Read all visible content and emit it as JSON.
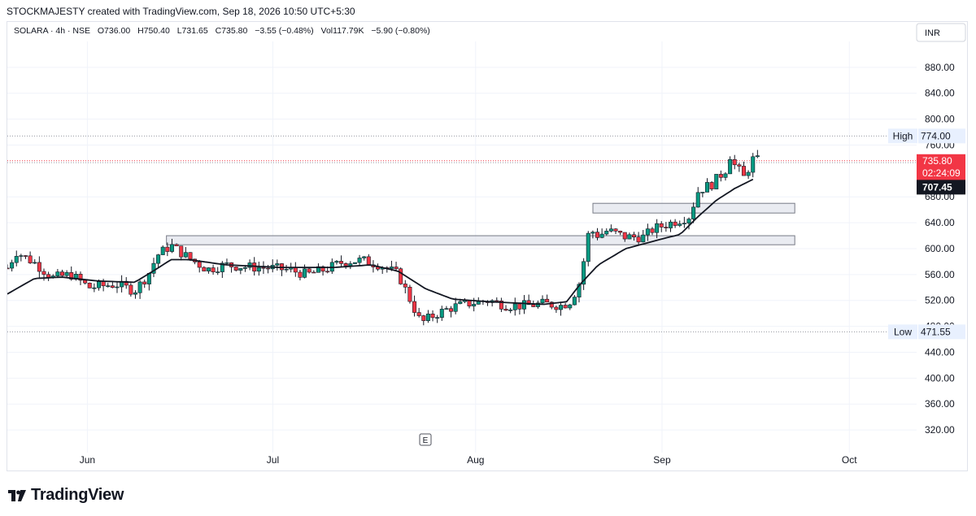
{
  "credit": "STOCKMAJESTY created with TradingView.com, Sep 18, 2026 10:50 UTC+5:30",
  "brand": "TradingView",
  "chart_data": {
    "type": "candlestick",
    "legend": {
      "symbol": "SOLARA · 4h · NSE",
      "open": "O736.00",
      "high": "H750.40",
      "low": "L731.65",
      "close": "C735.80",
      "change": "−3.55 (−0.48%)",
      "volume": "Vol117.79K",
      "ma_change": "−5.90 (−0.80%)"
    },
    "currency": "INR",
    "y_ticks": [
      "880.00",
      "840.00",
      "800.00",
      "760.00",
      "680.00",
      "640.00",
      "600.00",
      "560.00",
      "520.00",
      "480.00",
      "440.00",
      "400.00",
      "360.00",
      "320.00"
    ],
    "y_tick_values": [
      880,
      840,
      800,
      760,
      680,
      640,
      600,
      560,
      520,
      480,
      440,
      400,
      360,
      320
    ],
    "ylim": [
      285,
      920
    ],
    "x_ticks": [
      "Jun",
      "Jul",
      "Aug",
      "Sep",
      "Oct"
    ],
    "x_tick_positions": [
      0.088,
      0.292,
      0.515,
      0.72,
      0.926
    ],
    "high_label": "High",
    "high_value": "774.00",
    "high": 774.0,
    "low_label": "Low",
    "low_value": "471.55",
    "low": 471.55,
    "last_price": "735.80",
    "countdown": "02:24:09",
    "ma_value": "707.45",
    "last": 735.8,
    "ma_last": 707.45,
    "zones": [
      {
        "x0": 0.175,
        "x1": 0.866,
        "low": 606,
        "high": 620
      },
      {
        "x0": 0.644,
        "x1": 0.866,
        "low": 655,
        "high": 670
      }
    ],
    "price_anchors": [
      [
        0,
        570
      ],
      [
        0.01,
        595
      ],
      [
        0.03,
        578
      ],
      [
        0.05,
        555
      ],
      [
        0.07,
        560
      ],
      [
        0.09,
        540
      ],
      [
        0.12,
        545
      ],
      [
        0.14,
        535
      ],
      [
        0.155,
        560
      ],
      [
        0.165,
        590
      ],
      [
        0.18,
        605
      ],
      [
        0.2,
        585
      ],
      [
        0.22,
        568
      ],
      [
        0.24,
        575
      ],
      [
        0.26,
        572
      ],
      [
        0.29,
        570
      ],
      [
        0.31,
        567
      ],
      [
        0.33,
        560
      ],
      [
        0.35,
        568
      ],
      [
        0.37,
        580
      ],
      [
        0.39,
        582
      ],
      [
        0.41,
        575
      ],
      [
        0.43,
        560
      ],
      [
        0.44,
        530
      ],
      [
        0.455,
        485
      ],
      [
        0.47,
        498
      ],
      [
        0.49,
        510
      ],
      [
        0.51,
        516
      ],
      [
        0.53,
        520
      ],
      [
        0.55,
        512
      ],
      [
        0.57,
        512
      ],
      [
        0.59,
        515
      ],
      [
        0.61,
        512
      ],
      [
        0.62,
        520
      ],
      [
        0.63,
        550
      ],
      [
        0.64,
        630
      ],
      [
        0.65,
        620
      ],
      [
        0.66,
        628
      ],
      [
        0.68,
        618
      ],
      [
        0.7,
        618
      ],
      [
        0.71,
        630
      ],
      [
        0.73,
        640
      ],
      [
        0.75,
        650
      ],
      [
        0.76,
        690
      ],
      [
        0.775,
        700
      ],
      [
        0.79,
        722
      ],
      [
        0.795,
        745
      ],
      [
        0.8,
        728
      ],
      [
        0.805,
        720
      ],
      [
        0.81,
        710
      ],
      [
        0.82,
        738
      ],
      [
        0.825,
        736
      ]
    ],
    "ma_anchors": [
      [
        0,
        530
      ],
      [
        0.03,
        554
      ],
      [
        0.06,
        556
      ],
      [
        0.1,
        550
      ],
      [
        0.14,
        548
      ],
      [
        0.16,
        565
      ],
      [
        0.18,
        583
      ],
      [
        0.2,
        583
      ],
      [
        0.24,
        575
      ],
      [
        0.3,
        571
      ],
      [
        0.36,
        571
      ],
      [
        0.4,
        575
      ],
      [
        0.43,
        565
      ],
      [
        0.46,
        538
      ],
      [
        0.49,
        522
      ],
      [
        0.53,
        518
      ],
      [
        0.59,
        514
      ],
      [
        0.615,
        518
      ],
      [
        0.63,
        545
      ],
      [
        0.65,
        575
      ],
      [
        0.68,
        600
      ],
      [
        0.72,
        615
      ],
      [
        0.74,
        622
      ],
      [
        0.76,
        650
      ],
      [
        0.78,
        675
      ],
      [
        0.8,
        693
      ],
      [
        0.82,
        707
      ]
    ]
  }
}
